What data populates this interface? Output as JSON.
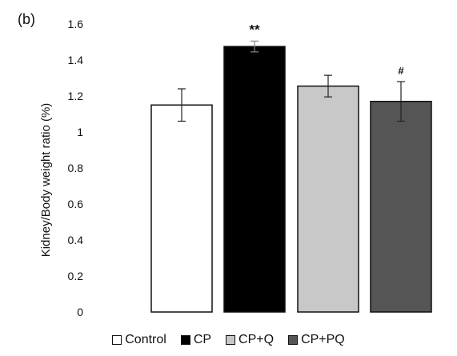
{
  "panel_label": "(b)",
  "chart_data": {
    "type": "bar",
    "categories": [
      "Control",
      "CP",
      "CP+Q",
      "CP+PQ"
    ],
    "values": [
      1.15,
      1.475,
      1.255,
      1.17
    ],
    "errors": [
      0.09,
      0.03,
      0.06,
      0.11
    ],
    "annotations": [
      "",
      "**",
      "",
      "#"
    ],
    "colors": [
      "#ffffff",
      "#000000",
      "#c8c8c8",
      "#555555"
    ],
    "ylabel": "Kidney/Body weight ratio (%)",
    "ylim": [
      0,
      1.6
    ],
    "yticks": [
      "0",
      "0.2",
      "0.4",
      "0.6",
      "0.8",
      "1",
      "1.2",
      "1.4",
      "1.6"
    ],
    "grid": false,
    "legend_position": "bottom"
  }
}
